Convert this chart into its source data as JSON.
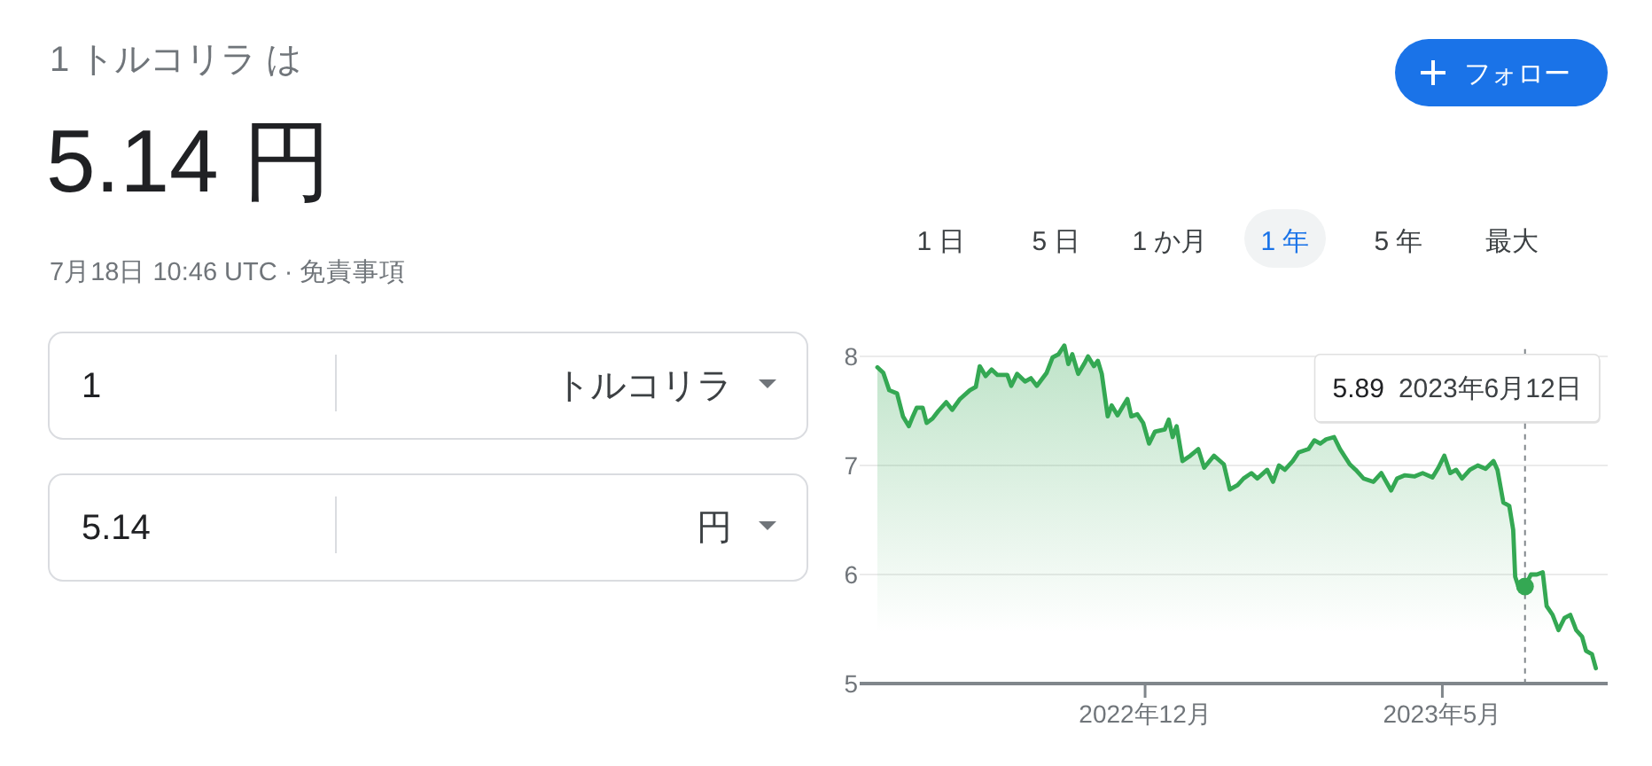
{
  "chart_data": [
    {
      "type": "other",
      "title": "1 トルコリラ は",
      "subtitle": "5.14 円",
      "annotations": [
        "7月18日 10:46 UTC · 免責事項",
        "フォロー",
        "1 日",
        "5 日",
        "1 か月",
        "1 年",
        "5 年",
        "最大",
        "1",
        "トルコリラ",
        "5.14",
        "円"
      ]
    },
    {
      "type": "area",
      "xlim": [
        "2022-07-09",
        "2023-07-24"
      ],
      "ylim": [
        5,
        8.1
      ],
      "yticks": [
        5,
        6,
        7,
        8
      ],
      "xticks": [
        {
          "value": "2022-12-01",
          "label": "2022年12月"
        },
        {
          "value": "2023-05-01",
          "label": "2023年5月"
        }
      ],
      "grid": "y",
      "series": [
        {
          "type": "area",
          "color": "#34a853",
          "x": [
            "2022-07-18",
            "2022-07-21",
            "2022-07-24",
            "2022-07-28",
            "2022-07-31",
            "2022-08-03",
            "2022-08-05",
            "2022-08-07",
            "2022-08-10",
            "2022-08-12",
            "2022-08-15",
            "2022-08-18",
            "2022-08-22",
            "2022-08-25",
            "2022-08-29",
            "2022-09-03",
            "2022-09-06",
            "2022-09-08",
            "2022-09-11",
            "2022-09-14",
            "2022-09-17",
            "2022-09-22",
            "2022-09-24",
            "2022-09-27",
            "2022-10-01",
            "2022-10-04",
            "2022-10-07",
            "2022-10-12",
            "2022-10-15",
            "2022-10-18",
            "2022-10-21",
            "2022-10-23",
            "2022-10-25",
            "2022-10-28",
            "2022-10-31",
            "2022-11-02",
            "2022-11-05",
            "2022-11-07",
            "2022-11-09",
            "2022-11-12",
            "2022-11-14",
            "2022-11-17",
            "2022-11-20",
            "2022-11-22",
            "2022-11-24",
            "2022-11-27",
            "2022-11-30",
            "2022-12-03",
            "2022-12-06",
            "2022-12-11",
            "2022-12-13",
            "2022-12-15",
            "2022-12-17",
            "2022-12-20",
            "2022-12-24",
            "2022-12-28",
            "2022-12-31",
            "2023-01-05",
            "2023-01-10",
            "2023-01-13",
            "2023-01-17",
            "2023-01-20",
            "2023-01-24",
            "2023-01-27",
            "2023-02-01",
            "2023-02-04",
            "2023-02-07",
            "2023-02-10",
            "2023-02-14",
            "2023-02-17",
            "2023-02-22",
            "2023-02-25",
            "2023-02-28",
            "2023-03-03",
            "2023-03-07",
            "2023-03-10",
            "2023-03-15",
            "2023-03-18",
            "2023-03-22",
            "2023-03-27",
            "2023-03-31",
            "2023-04-05",
            "2023-04-08",
            "2023-04-12",
            "2023-04-17",
            "2023-04-21",
            "2023-04-26",
            "2023-04-29",
            "2023-05-02",
            "2023-05-05",
            "2023-05-08",
            "2023-05-11",
            "2023-05-15",
            "2023-05-19",
            "2023-05-23",
            "2023-05-27",
            "2023-05-29",
            "2023-06-01",
            "2023-06-04",
            "2023-06-06",
            "2023-06-07",
            "2023-06-09",
            "2023-06-12",
            "2023-06-15",
            "2023-06-18",
            "2023-06-21",
            "2023-06-23",
            "2023-06-26",
            "2023-06-29",
            "2023-07-02",
            "2023-07-05",
            "2023-07-08",
            "2023-07-11",
            "2023-07-13",
            "2023-07-16",
            "2023-07-18"
          ],
          "values": [
            7.9,
            7.85,
            7.69,
            7.66,
            7.45,
            7.36,
            7.45,
            7.53,
            7.53,
            7.39,
            7.43,
            7.5,
            7.58,
            7.51,
            7.61,
            7.69,
            7.72,
            7.91,
            7.82,
            7.88,
            7.83,
            7.83,
            7.73,
            7.84,
            7.77,
            7.8,
            7.73,
            7.85,
            7.99,
            8.02,
            8.1,
            7.93,
            8.02,
            7.84,
            7.93,
            8.0,
            7.91,
            7.96,
            7.84,
            7.45,
            7.55,
            7.46,
            7.55,
            7.61,
            7.45,
            7.47,
            7.39,
            7.2,
            7.31,
            7.33,
            7.42,
            7.26,
            7.36,
            7.04,
            7.09,
            7.15,
            6.98,
            7.09,
            7.01,
            6.78,
            6.82,
            6.88,
            6.93,
            6.88,
            6.96,
            6.85,
            7.0,
            6.96,
            7.04,
            7.12,
            7.15,
            7.23,
            7.2,
            7.24,
            7.26,
            7.15,
            7.01,
            6.96,
            6.88,
            6.85,
            6.93,
            6.77,
            6.88,
            6.91,
            6.9,
            6.93,
            6.89,
            6.98,
            7.09,
            6.93,
            6.96,
            6.88,
            6.96,
            7.0,
            6.97,
            7.04,
            6.96,
            6.66,
            6.63,
            6.41,
            5.98,
            5.87,
            5.89,
            6.0,
            6.0,
            6.02,
            5.71,
            5.63,
            5.49,
            5.6,
            5.63,
            5.49,
            5.43,
            5.3,
            5.27,
            5.14
          ]
        },
        {
          "type": "scatter",
          "color": "#34a853",
          "marker": "circle",
          "x": [
            "2023-06-12"
          ],
          "values": [
            5.89
          ]
        }
      ],
      "ref_lines": [
        {
          "axis": "x",
          "value": "2023-06-12",
          "color": "#80868b",
          "line_style": "dashed"
        }
      ],
      "annotations": [
        "5.89",
        "2023年6月12日"
      ]
    }
  ]
}
